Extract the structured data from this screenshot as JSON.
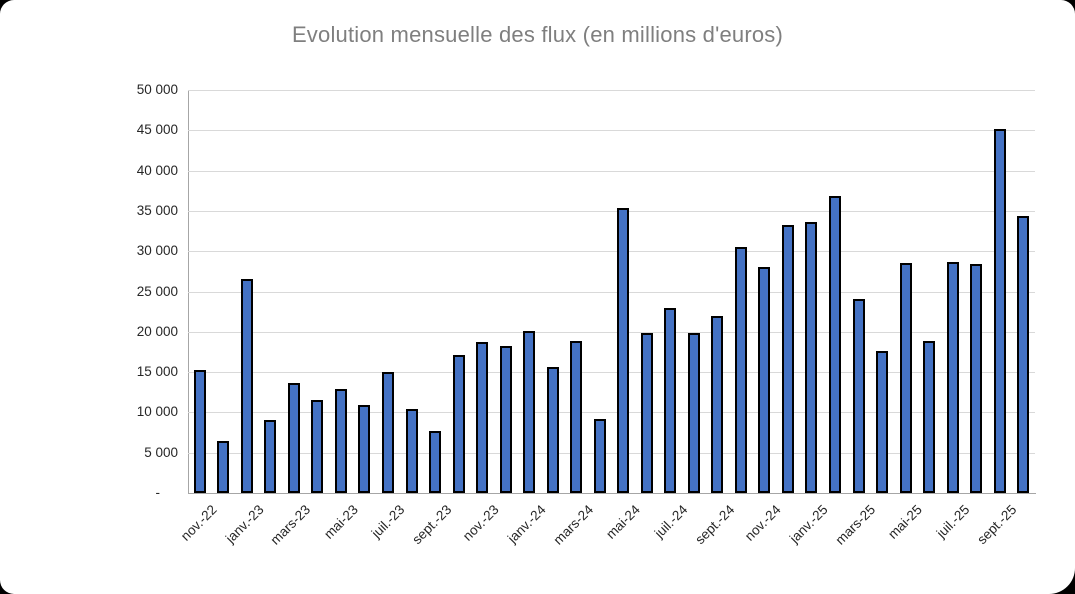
{
  "window": {
    "title": "Evolution mensuelle des flux (en millions d'euros)"
  },
  "chart_data": {
    "type": "bar",
    "title": "Evolution mensuelle des flux (en millions d'euros)",
    "categories": [
      "nov.-22",
      "déc.-22",
      "janv.-23",
      "févr.-23",
      "mars-23",
      "avr.-23",
      "mai-23",
      "juin-23",
      "juil.-23",
      "août-23",
      "sept.-23",
      "oct.-23",
      "nov.-23",
      "déc.-23",
      "janv.-24",
      "févr.-24",
      "mars-24",
      "avr.-24",
      "mai-24",
      "juin-24",
      "juil.-24",
      "août-24",
      "sept.-24",
      "oct.-24",
      "nov.-24",
      "déc.-24",
      "janv.-25",
      "févr.-25",
      "mars-25",
      "avr.-25",
      "mai-25",
      "juin-25",
      "juil.-25",
      "août-25",
      "sept.-25",
      "oct.-25"
    ],
    "values": [
      15300,
      6400,
      26500,
      9100,
      13700,
      11500,
      12900,
      10900,
      15000,
      10400,
      7700,
      17100,
      18700,
      18200,
      20100,
      15600,
      18900,
      9200,
      35400,
      19900,
      23000,
      19900,
      21900,
      30500,
      28000,
      33300,
      33600,
      36800,
      24100,
      17600,
      28500,
      18900,
      28700,
      28400,
      45200,
      34400
    ],
    "x_tick_step": 2,
    "x_tick_labels_shown": [
      "nov.-22",
      "janv.-23",
      "mars-23",
      "mai-23",
      "juil.-23",
      "sept.-23",
      "nov.-23",
      "janv.-24",
      "mars-24",
      "mai-24",
      "juil.-24",
      "sept.-24",
      "nov.-24",
      "janv.-25",
      "mars-25",
      "mai-25",
      "juil.-25",
      "sept.-25"
    ],
    "y_ticks": [
      {
        "value": 0,
        "label": "-"
      },
      {
        "value": 5000,
        "label": "5 000"
      },
      {
        "value": 10000,
        "label": "10 000"
      },
      {
        "value": 15000,
        "label": "15 000"
      },
      {
        "value": 20000,
        "label": "20 000"
      },
      {
        "value": 25000,
        "label": "25 000"
      },
      {
        "value": 30000,
        "label": "30 000"
      },
      {
        "value": 35000,
        "label": "35 000"
      },
      {
        "value": 40000,
        "label": "40 000"
      },
      {
        "value": 45000,
        "label": "45 000"
      },
      {
        "value": 50000,
        "label": "50 000"
      }
    ],
    "ylim": [
      0,
      50000
    ],
    "grid": true,
    "legend": false,
    "colors": {
      "bar_fill": "#4472C4",
      "bar_border": "#000000",
      "gridline": "#D9D9D9",
      "axis_line": "#A6A6A6",
      "title_text": "#7F7F7F",
      "tick_text": "#262626",
      "plot_background": "#FFFFFF"
    }
  }
}
